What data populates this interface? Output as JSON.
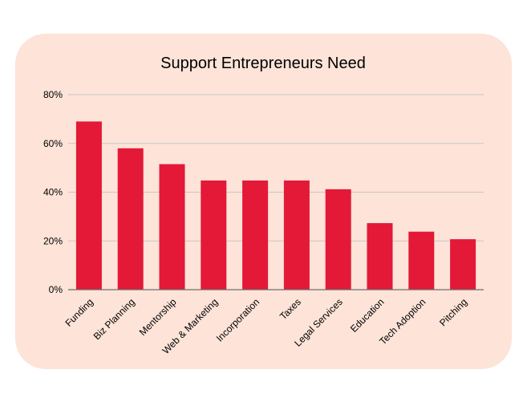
{
  "chart_data": {
    "type": "bar",
    "title": "Support Entrepreneurs Need",
    "xlabel": "",
    "ylabel": "",
    "categories": [
      "Funding",
      "Biz Planning",
      "Mentorship",
      "Web & Marketing",
      "Incorporation",
      "Taxes",
      "Legal Services",
      "Education",
      "Tech Adoption",
      "Pitching"
    ],
    "values": [
      69,
      58,
      51.5,
      44.8,
      44.8,
      44.8,
      41.2,
      27.3,
      23.8,
      20.7
    ],
    "ylim": [
      0,
      80
    ],
    "yticks": [
      0,
      20,
      40,
      60,
      80
    ],
    "ytick_labels": [
      "0%",
      "20%",
      "40%",
      "60%",
      "80%"
    ],
    "grid": true,
    "legend": "none",
    "bar_color": "#e31937",
    "background_color": "#fde3d8"
  }
}
